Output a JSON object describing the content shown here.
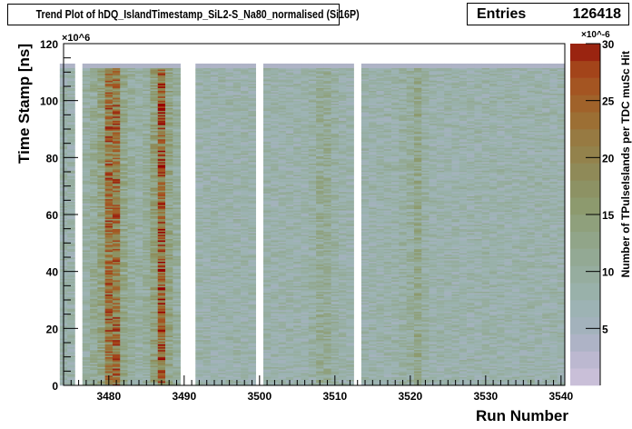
{
  "title": "Trend Plot of hDQ_IslandTimestamp_SiL2-S_Na80_normalised (Si16P)",
  "stats": {
    "label": "Entries",
    "value": "126418"
  },
  "chart_data": {
    "type": "heatmap",
    "title": "Trend Plot of hDQ_IslandTimestamp_SiL2-S_Na80_normalised (Si16P)",
    "xlabel": "Run Number",
    "ylabel": "Time Stamp [ns]",
    "zlabel": "Number of TPulseIslands per TDC muSc Hit",
    "y_multiplier": "×10^6",
    "z_multiplier": "×10^-6",
    "xlim": [
      3474,
      3540.5
    ],
    "ylim": [
      0,
      120
    ],
    "zlim": [
      0,
      30
    ],
    "data_ymax": 113,
    "xticks": [
      3480,
      3490,
      3500,
      3510,
      3520,
      3530,
      3540
    ],
    "yticks": [
      0,
      20,
      40,
      60,
      80,
      100,
      120
    ],
    "zticks": [
      5,
      10,
      15,
      20,
      25,
      30
    ],
    "missing_runs": [
      3476,
      3490,
      3491,
      3500,
      3513
    ],
    "run_mean_level": {
      "3474": 8,
      "3475": 8,
      "3477": 9,
      "3478": 11,
      "3479": 13,
      "3480": 22,
      "3481": 22,
      "3482": 12,
      "3483": 10,
      "3484": 9,
      "3485": 10,
      "3486": 14,
      "3487": 24,
      "3488": 13,
      "3489": 10,
      "3492": 8,
      "3493": 8,
      "3494": 8,
      "3495": 8,
      "3496": 8,
      "3497": 8,
      "3498": 8,
      "3499": 8,
      "3501": 8,
      "3502": 8,
      "3503": 8,
      "3504": 8,
      "3505": 8,
      "3506": 8,
      "3507": 9,
      "3508": 11,
      "3509": 11,
      "3510": 9,
      "3511": 8,
      "3512": 8,
      "3514": 8,
      "3515": 8,
      "3516": 8,
      "3517": 8,
      "3518": 8,
      "3519": 9,
      "3520": 10,
      "3521": 12,
      "3522": 9,
      "3523": 8,
      "3524": 8,
      "3525": 8,
      "3526": 8,
      "3527": 8,
      "3528": 8,
      "3529": 8,
      "3530": 8,
      "3531": 8,
      "3532": 8,
      "3533": 8,
      "3534": 8,
      "3535": 8,
      "3536": 8,
      "3537": 8,
      "3538": 8,
      "3539": 8,
      "3540": 8
    },
    "palette": [
      "#c9bfd8",
      "#bcb8d0",
      "#aeb3c6",
      "#a3b2bc",
      "#9db3b4",
      "#99b1aa",
      "#96ad9f",
      "#93a994",
      "#91a589",
      "#8fa07c",
      "#8d9a6e",
      "#8d9264",
      "#8f8a58",
      "#93824c",
      "#977a42",
      "#9c6f34",
      "#a0622a",
      "#a45522",
      "#a3441a",
      "#9a2410",
      "#990000"
    ],
    "grid": false,
    "legend": "color-bar-right"
  }
}
